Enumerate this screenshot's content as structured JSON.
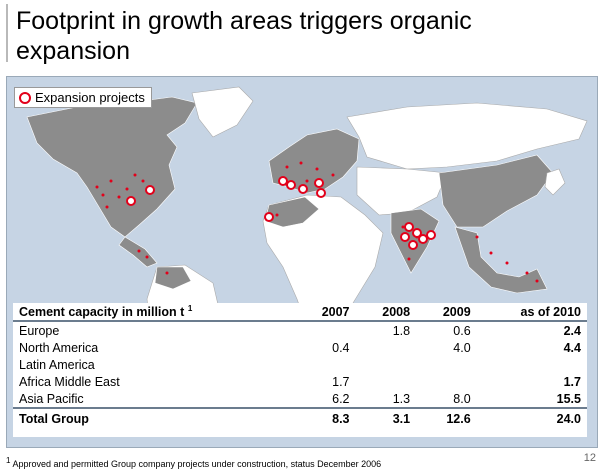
{
  "title": "Footprint in growth areas triggers organic expansion",
  "legend": {
    "label": "Expansion projects"
  },
  "colors": {
    "marker": "#e2001a",
    "land_presence": "#8c8c8c",
    "land_other": "#ffffff",
    "sea": "#c6d4e4"
  },
  "table": {
    "header_label": "Cement capacity in million t",
    "header_sup": "1",
    "columns": [
      "2007",
      "2008",
      "2009",
      "as of 2010"
    ],
    "rows": [
      {
        "label": "Europe",
        "values": [
          "",
          "1.8",
          "0.6",
          "2.4"
        ]
      },
      {
        "label": "North America",
        "values": [
          "0.4",
          "",
          "4.0",
          "4.4"
        ]
      },
      {
        "label": "Latin America",
        "values": [
          "",
          "",
          "",
          ""
        ]
      },
      {
        "label": "Africa Middle East",
        "values": [
          "1.7",
          "",
          "",
          "1.7"
        ]
      },
      {
        "label": "Asia Pacific",
        "values": [
          "6.2",
          "1.3",
          "8.0",
          "15.5"
        ]
      }
    ],
    "total": {
      "label": "Total Group",
      "values": [
        "8.3",
        "3.1",
        "12.6",
        "24.0"
      ]
    }
  },
  "footnote": {
    "marker": "1",
    "text": " Approved and permitted Group company projects under construction, status December 2006"
  },
  "page_number": "12"
}
